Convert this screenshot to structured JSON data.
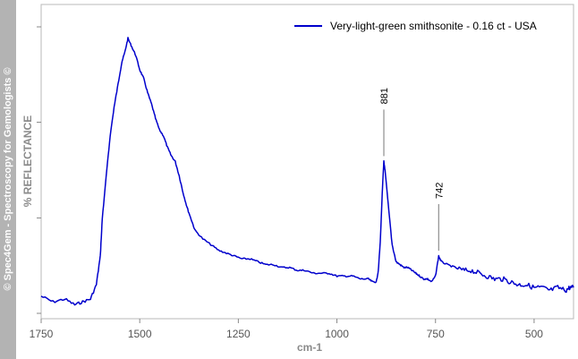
{
  "sidebar": {
    "text": "© Spec4Gem - Spectroscopy for Gemologists ©"
  },
  "chart_data": {
    "type": "line",
    "xlabel": "cm-1",
    "ylabel": "%  REFLECTANCE",
    "xlim": [
      1750,
      400
    ],
    "ylim": [
      0,
      100
    ],
    "x_ticks": [
      1750,
      1500,
      1250,
      1000,
      750,
      500
    ],
    "x_tick_labels": [
      "1750",
      "1500",
      "1250",
      "1000",
      "750",
      "500"
    ],
    "y_ticks": [
      0,
      33.3,
      66.7,
      100
    ],
    "grid": false,
    "legend_position": "top-right",
    "series": [
      {
        "name": "Very-light-green smithsonite - 0.16 ct - USA",
        "color": "#0000cc",
        "x": [
          1750,
          1720,
          1690,
          1665,
          1645,
          1625,
          1610,
          1600,
          1595,
          1585,
          1575,
          1565,
          1555,
          1545,
          1538,
          1530,
          1520,
          1510,
          1500,
          1490,
          1480,
          1470,
          1460,
          1450,
          1440,
          1430,
          1420,
          1410,
          1400,
          1390,
          1380,
          1370,
          1360,
          1340,
          1320,
          1300,
          1280,
          1260,
          1240,
          1220,
          1200,
          1180,
          1160,
          1140,
          1120,
          1100,
          1080,
          1060,
          1040,
          1020,
          1000,
          980,
          960,
          940,
          920,
          910,
          900,
          895,
          890,
          885,
          881,
          878,
          870,
          860,
          850,
          840,
          830,
          820,
          810,
          800,
          790,
          780,
          770,
          760,
          750,
          742,
          735,
          720,
          700,
          680,
          660,
          640,
          620,
          600,
          580,
          560,
          540,
          520,
          500,
          480,
          460,
          440,
          420,
          410,
          400
        ],
        "y": [
          6,
          4,
          5,
          3,
          4,
          5,
          10,
          20,
          33,
          48,
          62,
          72,
          80,
          88,
          91,
          96,
          93,
          90,
          85,
          82,
          77,
          73,
          68,
          64,
          62,
          58,
          55,
          53,
          48,
          42,
          37,
          33,
          29,
          26,
          24,
          22,
          21,
          20,
          19,
          19,
          18,
          17,
          17,
          16,
          16,
          15,
          15,
          14,
          14,
          14,
          13,
          13,
          13,
          12,
          12,
          11,
          11,
          15,
          25,
          42,
          53,
          50,
          38,
          24,
          18,
          17,
          16,
          16,
          15,
          14,
          13,
          12,
          12,
          11,
          13,
          20,
          18,
          17,
          16,
          15,
          15,
          14,
          13,
          12,
          12,
          11,
          10,
          10,
          9,
          9,
          8,
          9,
          8,
          9,
          9
        ]
      }
    ],
    "annotations": [
      {
        "label": "881",
        "x": 881
      },
      {
        "label": "742",
        "x": 742
      }
    ]
  }
}
